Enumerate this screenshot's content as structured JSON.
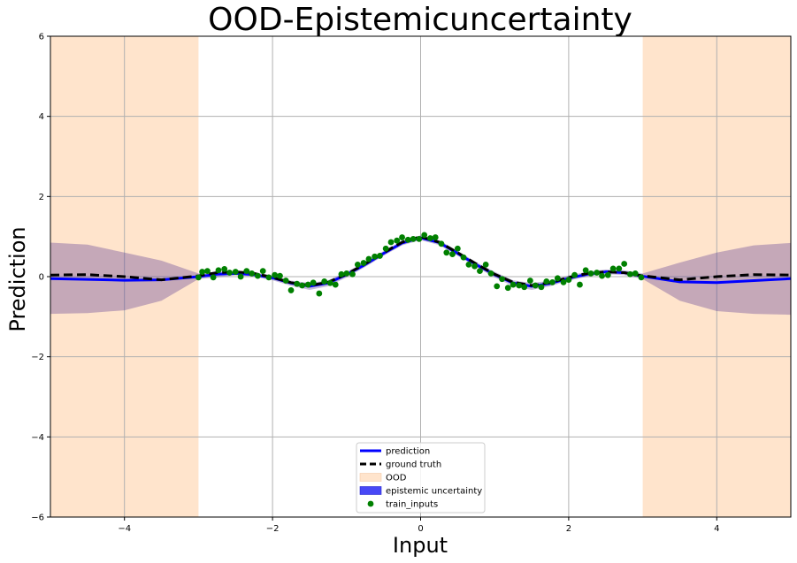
{
  "chart_data": {
    "type": "line",
    "title": "OOD-Epistemicuncertainty",
    "xlabel": "Input",
    "ylabel": "Prediction",
    "xlim": [
      -5,
      5
    ],
    "ylim": [
      -6,
      6
    ],
    "xticks": [
      -4,
      -2,
      0,
      2,
      4
    ],
    "xtick_labels": [
      "−4",
      "−2",
      "0",
      "2",
      "4"
    ],
    "yticks": [
      -6,
      -4,
      -2,
      0,
      2,
      4,
      6
    ],
    "ytick_labels": [
      "−6",
      "−4",
      "−2",
      "0",
      "2",
      "4",
      "6"
    ],
    "grid": true,
    "legend_position": "bottom-center",
    "ood_regions": [
      [
        -5,
        -3
      ],
      [
        3,
        5
      ]
    ],
    "series": [
      {
        "name": "prediction",
        "style": "solid",
        "color": "#0000ff",
        "x": [
          -5.0,
          -4.5,
          -4.0,
          -3.5,
          -3.0,
          -2.75,
          -2.5,
          -2.25,
          -2.0,
          -1.75,
          -1.5,
          -1.25,
          -1.0,
          -0.75,
          -0.5,
          -0.25,
          0.0,
          0.25,
          0.5,
          0.75,
          1.0,
          1.25,
          1.5,
          1.75,
          2.0,
          2.25,
          2.5,
          2.75,
          3.0,
          3.5,
          4.0,
          4.5,
          5.0
        ],
        "y": [
          -0.05,
          -0.07,
          -0.09,
          -0.08,
          0.0,
          0.06,
          0.08,
          0.05,
          -0.03,
          -0.16,
          -0.24,
          -0.16,
          0.05,
          0.3,
          0.58,
          0.84,
          0.97,
          0.85,
          0.58,
          0.3,
          0.05,
          -0.16,
          -0.24,
          -0.17,
          -0.04,
          0.06,
          0.12,
          0.1,
          0.01,
          -0.13,
          -0.15,
          -0.1,
          -0.05
        ]
      },
      {
        "name": "ground truth",
        "style": "dashed",
        "color": "#000000",
        "x": [
          -5.0,
          -4.5,
          -4.0,
          -3.5,
          -3.0,
          -2.75,
          -2.5,
          -2.25,
          -2.0,
          -1.75,
          -1.5,
          -1.25,
          -1.0,
          -0.75,
          -0.5,
          -0.25,
          0.0,
          0.25,
          0.5,
          0.75,
          1.0,
          1.25,
          1.5,
          1.75,
          2.0,
          2.25,
          2.5,
          2.75,
          3.0,
          3.5,
          4.0,
          4.5,
          5.0
        ],
        "y": [
          0.04,
          0.05,
          0.0,
          -0.08,
          0.02,
          0.1,
          0.12,
          0.08,
          -0.02,
          -0.15,
          -0.22,
          -0.14,
          0.06,
          0.32,
          0.6,
          0.86,
          1.0,
          0.86,
          0.6,
          0.32,
          0.06,
          -0.14,
          -0.22,
          -0.15,
          -0.02,
          0.08,
          0.12,
          0.1,
          0.02,
          -0.08,
          0.0,
          0.05,
          0.04
        ]
      }
    ],
    "uncertainty_band": {
      "name": "epistemic uncertainty",
      "color": "#0000ff",
      "x": [
        -5.0,
        -4.5,
        -4.0,
        -3.5,
        -3.0,
        -2.75,
        -2.5,
        -2.25,
        -2.0,
        -1.75,
        -1.5,
        -1.25,
        -1.0,
        -0.75,
        -0.5,
        -0.25,
        0.0,
        0.25,
        0.5,
        0.75,
        1.0,
        1.25,
        1.5,
        1.75,
        2.0,
        2.25,
        2.5,
        2.75,
        3.0,
        3.5,
        4.0,
        4.5,
        5.0
      ],
      "lower": [
        -0.93,
        -0.91,
        -0.84,
        -0.6,
        -0.06,
        -0.02,
        0.03,
        0.0,
        -0.09,
        -0.23,
        -0.33,
        -0.24,
        -0.02,
        0.24,
        0.52,
        0.78,
        0.91,
        0.79,
        0.52,
        0.24,
        -0.02,
        -0.24,
        -0.33,
        -0.24,
        -0.1,
        0.0,
        0.06,
        0.04,
        -0.06,
        -0.6,
        -0.86,
        -0.93,
        -0.95
      ],
      "upper": [
        0.85,
        0.8,
        0.6,
        0.4,
        0.08,
        0.12,
        0.14,
        0.11,
        0.03,
        -0.1,
        -0.16,
        -0.09,
        0.12,
        0.36,
        0.64,
        0.9,
        1.03,
        0.91,
        0.64,
        0.36,
        0.12,
        -0.09,
        -0.16,
        -0.1,
        0.03,
        0.12,
        0.18,
        0.16,
        0.08,
        0.35,
        0.6,
        0.78,
        0.84
      ]
    },
    "train_inputs": {
      "name": "train_inputs",
      "color": "#008000",
      "x": [
        -3.0,
        -2.95,
        -2.88,
        -2.8,
        -2.73,
        -2.65,
        -2.58,
        -2.5,
        -2.43,
        -2.35,
        -2.28,
        -2.2,
        -2.13,
        -2.05,
        -1.97,
        -1.9,
        -1.82,
        -1.75,
        -1.67,
        -1.6,
        -1.52,
        -1.45,
        -1.37,
        -1.3,
        -1.22,
        -1.15,
        -1.07,
        -1.0,
        -0.92,
        -0.85,
        -0.77,
        -0.7,
        -0.62,
        -0.55,
        -0.47,
        -0.4,
        -0.32,
        -0.25,
        -0.17,
        -0.1,
        -0.02,
        0.05,
        0.13,
        0.2,
        0.28,
        0.35,
        0.43,
        0.5,
        0.58,
        0.65,
        0.73,
        0.8,
        0.88,
        0.95,
        1.03,
        1.1,
        1.18,
        1.25,
        1.33,
        1.4,
        1.48,
        1.55,
        1.63,
        1.7,
        1.78,
        1.85,
        1.93,
        2.0,
        2.08,
        2.15,
        2.23,
        2.3,
        2.38,
        2.45,
        2.53,
        2.6,
        2.68,
        2.75,
        2.83,
        2.9,
        2.98
      ],
      "y": [
        -0.02,
        0.12,
        0.14,
        -0.02,
        0.16,
        0.19,
        0.1,
        0.12,
        0.0,
        0.14,
        0.08,
        0.02,
        0.14,
        -0.02,
        0.04,
        0.02,
        -0.1,
        -0.34,
        -0.18,
        -0.22,
        -0.2,
        -0.15,
        -0.42,
        -0.12,
        -0.16,
        -0.2,
        0.06,
        0.08,
        0.06,
        0.3,
        0.34,
        0.44,
        0.5,
        0.52,
        0.7,
        0.86,
        0.9,
        0.98,
        0.92,
        0.94,
        0.94,
        1.04,
        0.96,
        0.98,
        0.82,
        0.6,
        0.56,
        0.7,
        0.48,
        0.3,
        0.26,
        0.14,
        0.3,
        0.08,
        -0.24,
        -0.06,
        -0.28,
        -0.2,
        -0.22,
        -0.26,
        -0.1,
        -0.22,
        -0.26,
        -0.12,
        -0.14,
        -0.04,
        -0.14,
        -0.08,
        0.04,
        -0.2,
        0.16,
        0.08,
        0.1,
        0.02,
        0.04,
        0.2,
        0.2,
        0.32,
        0.06,
        0.08,
        -0.02
      ]
    },
    "legend": [
      {
        "label": "prediction",
        "kind": "line",
        "color": "#0000ff"
      },
      {
        "label": "ground truth",
        "kind": "dashed",
        "color": "#000000"
      },
      {
        "label": "OOD",
        "kind": "patch",
        "color": "#ffe4cc"
      },
      {
        "label": "epistemic uncertainty",
        "kind": "patch",
        "color": "#4848f6"
      },
      {
        "label": "train_inputs",
        "kind": "marker",
        "color": "#008000"
      }
    ]
  }
}
